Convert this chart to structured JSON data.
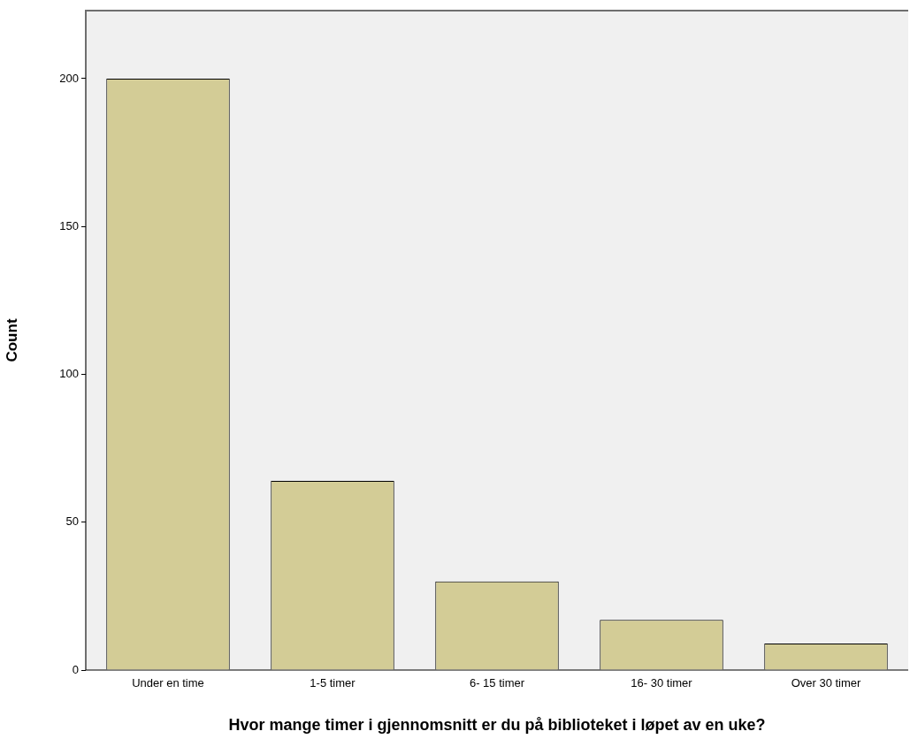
{
  "chart_data": {
    "type": "bar",
    "xlabel": "Hvor mange timer i gjennomsnitt er du på biblioteket i løpet av en uke?",
    "ylabel": "Count",
    "categories": [
      "Under en time",
      "1-5 timer",
      "6- 15 timer",
      "16- 30 timer",
      "Over 30 timer"
    ],
    "values": [
      200,
      64,
      30,
      17,
      9
    ],
    "color": "#d3cc96",
    "ylim": [
      0,
      223
    ],
    "yticks": [
      0,
      50,
      100,
      150,
      200
    ],
    "grid": false,
    "legend": false
  }
}
